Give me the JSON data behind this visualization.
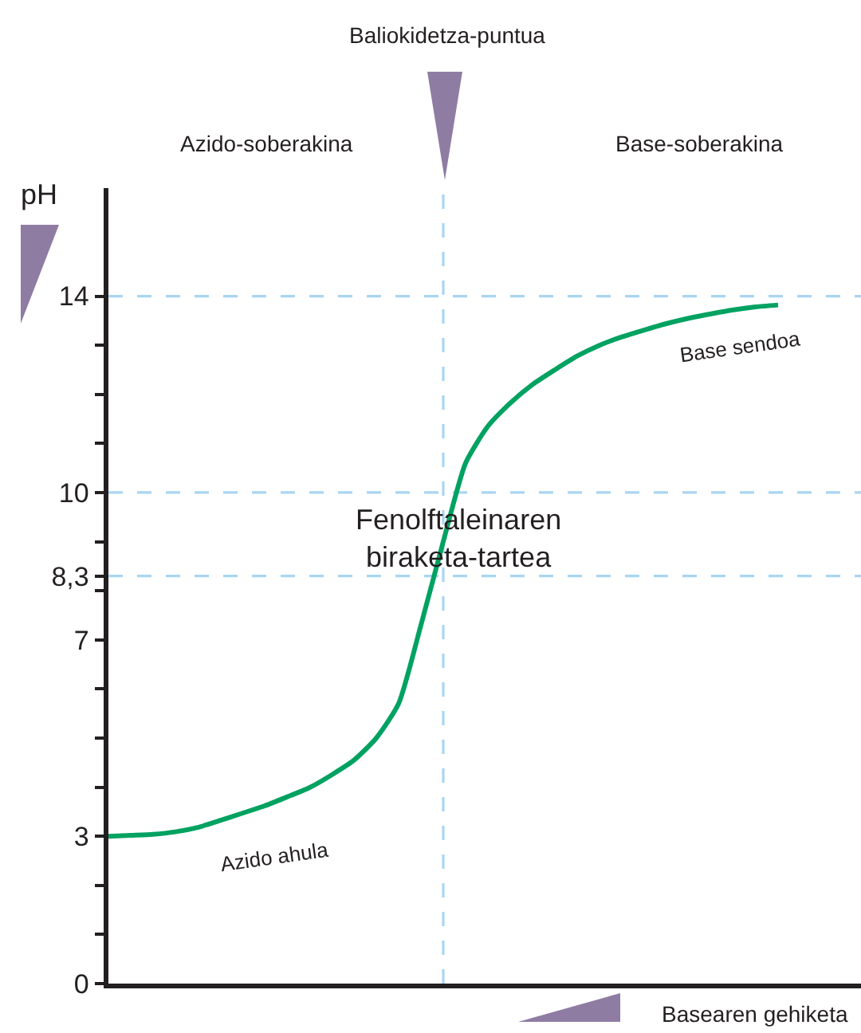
{
  "chart_data": {
    "type": "line",
    "xlabel": "Basearen gehiketa",
    "ylabel": "pH",
    "categories": [
      null,
      null,
      null,
      null,
      null,
      null,
      null,
      null,
      null,
      null,
      null,
      null,
      null,
      null,
      null,
      null,
      null,
      null,
      null,
      null,
      null,
      null,
      null,
      null,
      null,
      null,
      null,
      null,
      null,
      null,
      null
    ],
    "series": [
      {
        "color": "#00a261",
        "values": [
          3.0,
          3.02,
          3.04,
          3.09,
          3.18,
          3.32,
          3.47,
          3.62,
          3.8,
          3.99,
          4.25,
          4.55,
          5.0,
          5.7,
          7.3,
          9.0,
          10.6,
          11.35,
          11.82,
          12.2,
          12.5,
          12.78,
          13.0,
          13.17,
          13.31,
          13.44,
          13.55,
          13.64,
          13.72,
          13.78,
          13.82
        ]
      }
    ],
    "ylim": [
      0,
      16.2
    ],
    "yticks": [
      0,
      {
        "value": 1,
        "label": null
      },
      {
        "value": 2,
        "label": null
      },
      3,
      {
        "value": 4,
        "label": null
      },
      {
        "value": 5,
        "label": null
      },
      {
        "value": 6,
        "label": null
      },
      7,
      {
        "value": 8,
        "label": null
      },
      {
        "value": 8.3,
        "label": "8,3"
      },
      {
        "value": 9,
        "label": null
      },
      10,
      {
        "value": 11,
        "label": null
      },
      {
        "value": 12,
        "label": null
      },
      {
        "value": 13,
        "label": null
      },
      14
    ],
    "ref_lines": [
      {
        "axis": "y",
        "value": 14,
        "color": "#a9d5f2",
        "line_style": "dashed"
      },
      {
        "axis": "y",
        "value": 10,
        "color": "#a9d5f2",
        "line_style": "dashed"
      },
      {
        "axis": "y",
        "value": 8.3,
        "color": "#a9d5f2",
        "line_style": "dashed"
      }
    ],
    "annotations": [
      "Azido-soberakina",
      "Base-soberakina",
      "Fenolftaleinaren\nbiraketa-tartea",
      "Azido ahula",
      "Base sendoa",
      "Baliokidetza-puntua"
    ],
    "grid": false,
    "marker": "none",
    "line_style": "solid"
  }
}
